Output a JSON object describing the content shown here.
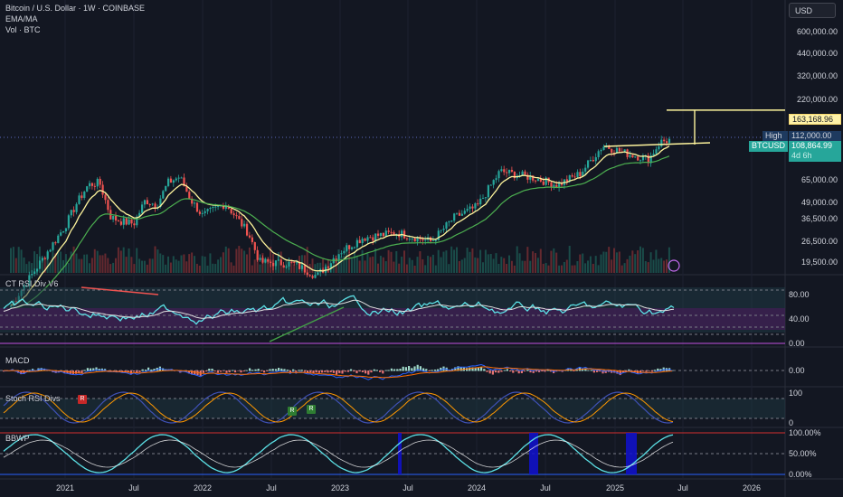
{
  "header": {
    "title": "Bitcoin / U.S. Dollar · 1W · COINBASE",
    "ind1": "EMA/MA",
    "ind2": "Vol · BTC"
  },
  "toolbar": {
    "currency": "USD"
  },
  "price_axis": [
    "600,000.00",
    "440,000.00",
    "320,000.00",
    "220,000.00",
    "65,000.00",
    "49,000.00",
    "36,500.00",
    "26,500.00",
    "19,500.00"
  ],
  "price_tags": {
    "target": "163,168.96",
    "high_label": "High",
    "high_value": "112,000.00",
    "symbol": "BTCUSD",
    "price": "108,864.99",
    "countdown": "4d 6h"
  },
  "panes": {
    "rsi": {
      "label": "CT RSI Div V6",
      "axis": [
        "80.00",
        "40.00",
        "0.00"
      ]
    },
    "macd": {
      "label": "MACD",
      "axis": [
        "0.00"
      ]
    },
    "stoch": {
      "label": "Stoch RSI Divs",
      "axis": [
        "100",
        "0"
      ],
      "signals": [
        "R",
        "R",
        "R"
      ]
    },
    "bbwp": {
      "label": "BBWP",
      "axis": [
        "100.00%",
        "50.00%",
        "0.00%"
      ]
    }
  },
  "time_axis": [
    "2021",
    "Jul",
    "2022",
    "Jul",
    "2023",
    "Jul",
    "2024",
    "Jul",
    "2025",
    "Jul",
    "2026"
  ],
  "colors": {
    "bg": "#131722",
    "up": "#26a69a",
    "down": "#ef5350",
    "ema": "#fff59d",
    "ma": "#4caf50",
    "rsi": "#5ce1e6",
    "bbwp_line": "#5ce1e6",
    "bbwp_hi": "#1010d0"
  },
  "chart_data": {
    "type": "candlestick",
    "symbol": "BTCUSD",
    "interval": "1W",
    "log_scale": true,
    "price_points": [
      {
        "t": "2021-01",
        "v": 33000
      },
      {
        "t": "2021-02",
        "v": 45000
      },
      {
        "t": "2021-03",
        "v": 58000
      },
      {
        "t": "2021-04",
        "v": 60000
      },
      {
        "t": "2021-05",
        "v": 37000
      },
      {
        "t": "2021-06",
        "v": 35000
      },
      {
        "t": "2021-07",
        "v": 34000
      },
      {
        "t": "2021-08",
        "v": 47000
      },
      {
        "t": "2021-09",
        "v": 44000
      },
      {
        "t": "2021-10",
        "v": 60000
      },
      {
        "t": "2021-11",
        "v": 65000
      },
      {
        "t": "2021-12",
        "v": 47000
      },
      {
        "t": "2022-01",
        "v": 38000
      },
      {
        "t": "2022-03",
        "v": 45000
      },
      {
        "t": "2022-05",
        "v": 30000
      },
      {
        "t": "2022-06",
        "v": 20000
      },
      {
        "t": "2022-09",
        "v": 19500
      },
      {
        "t": "2022-11",
        "v": 16500
      },
      {
        "t": "2023-01",
        "v": 23000
      },
      {
        "t": "2023-03",
        "v": 28000
      },
      {
        "t": "2023-06",
        "v": 30000
      },
      {
        "t": "2023-09",
        "v": 26500
      },
      {
        "t": "2023-11",
        "v": 37000
      },
      {
        "t": "2024-01",
        "v": 43000
      },
      {
        "t": "2024-03",
        "v": 70000
      },
      {
        "t": "2024-06",
        "v": 64000
      },
      {
        "t": "2024-08",
        "v": 58000
      },
      {
        "t": "2024-10",
        "v": 68000
      },
      {
        "t": "2024-12",
        "v": 100000
      },
      {
        "t": "2025-02",
        "v": 90000
      },
      {
        "t": "2025-04",
        "v": 83000
      },
      {
        "t": "2025-05",
        "v": 105000
      },
      {
        "t": "2025-06",
        "v": 108864.99
      }
    ],
    "high": 112000.0,
    "target": 163168.96,
    "last": 108864.99
  }
}
